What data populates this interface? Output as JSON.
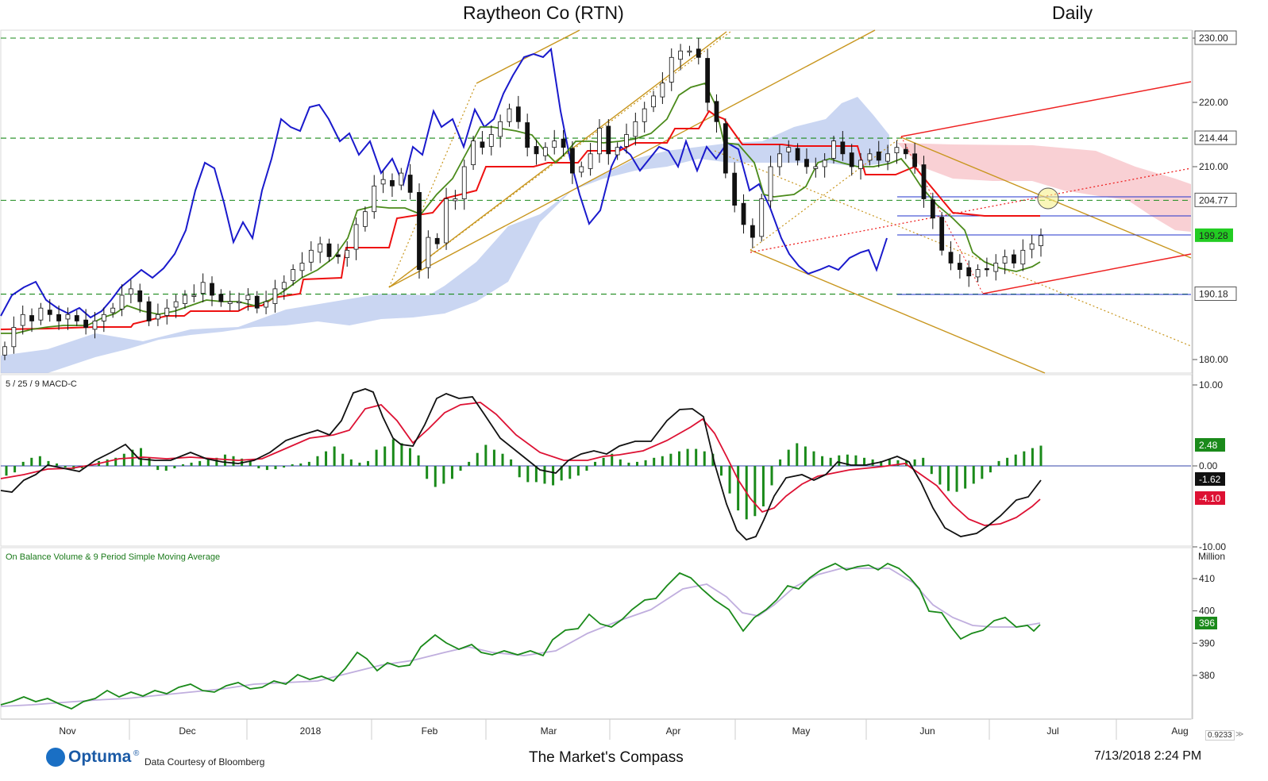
{
  "header": {
    "title": "Raytheon Co (RTN)",
    "timeframe": "Daily"
  },
  "footer": {
    "brand": "Optuma",
    "brand_mark": "®",
    "courtesy": "Data Courtesy of Bloomberg",
    "center_text": "The Market's Compass",
    "datetime": "7/13/2018 2:24 PM",
    "corner_value": "0.9233"
  },
  "chart_data": [
    {
      "type": "candlestick",
      "title": "Raytheon Co (RTN)",
      "period": "Daily",
      "y_ticks": [
        230.0,
        220.0,
        210.0,
        180.0
      ],
      "ylim": [
        178,
        231
      ],
      "grid": false,
      "x_labels": [
        "Nov",
        "Dec",
        "2018",
        "Feb",
        "Mar",
        "Apr",
        "May",
        "Jun",
        "Jul",
        "Aug"
      ],
      "horizontal_levels": [
        {
          "value": 230.0,
          "label": "230.00",
          "style": "dashed",
          "color": "#1a8a1a"
        },
        {
          "value": 214.44,
          "label": "214.44",
          "style": "dashed",
          "color": "#1a8a1a"
        },
        {
          "value": 204.77,
          "label": "204.77",
          "style": "dashed",
          "color": "#1a8a1a"
        },
        {
          "value": 190.18,
          "label": "190.18",
          "style": "dashed",
          "color": "#1a8a1a"
        }
      ],
      "last_price": {
        "value": 199.28,
        "label": "199.28",
        "color": "#22cc22"
      },
      "closes": [
        182,
        185,
        187,
        186,
        188,
        187,
        186,
        187,
        186,
        185,
        186,
        187,
        188,
        190,
        191,
        189,
        186,
        187,
        188,
        189,
        190,
        190,
        192,
        190,
        189,
        189,
        189,
        190,
        188,
        189,
        191,
        192,
        194,
        195,
        197,
        198,
        196,
        196,
        197,
        201,
        203,
        207,
        208,
        207,
        209,
        206,
        194,
        199,
        198,
        205,
        205,
        210,
        214,
        213,
        215,
        217,
        219,
        217,
        213,
        212,
        213,
        214,
        213,
        209,
        210,
        212,
        216,
        212,
        213,
        215,
        217,
        219,
        221,
        223,
        227,
        228,
        228,
        227,
        220,
        217,
        209,
        204,
        201,
        199,
        205,
        210,
        212,
        213,
        211,
        210,
        210,
        211,
        214,
        212,
        210,
        211,
        212,
        211,
        212,
        213,
        212,
        210,
        205,
        202,
        197,
        195,
        194,
        193,
        194,
        194,
        195,
        196,
        195,
        197,
        198,
        199.28
      ]
    },
    {
      "type": "line",
      "title": "5 / 25 / 9 MACD-C",
      "y_ticks": [
        10.0,
        0.0,
        -10.0
      ],
      "ylim": [
        -10,
        10
      ],
      "series": [
        {
          "name": "MACD",
          "color": "#111111",
          "last_label": "-1.62"
        },
        {
          "name": "Signal",
          "color": "#dd1133",
          "last_label": "-4.10"
        },
        {
          "name": "Histogram",
          "color": "#1a8a1a",
          "last_label": "2.48"
        }
      ]
    },
    {
      "type": "line",
      "title": "On Balance Volume & 9 Period Simple Moving Average",
      "unit": "Million",
      "y_ticks": [
        410,
        400,
        390,
        380
      ],
      "series": [
        {
          "name": "On Balance Volume",
          "color": "#1a8a1a",
          "last_label": "396"
        },
        {
          "name": "9 Period Simple Moving Average",
          "color": "#b8a0d8"
        }
      ]
    }
  ],
  "colors": {
    "up_candle": "#ffffff",
    "down_candle": "#111111",
    "tenkan": "#4a8a1a",
    "kijun": "#ee1111",
    "chikou": "#1a1acc",
    "cloud_bull": "#b8c8ee",
    "cloud_bear": "#f8c8cc",
    "trend": "#c8961e",
    "channel": "#ee2222"
  }
}
